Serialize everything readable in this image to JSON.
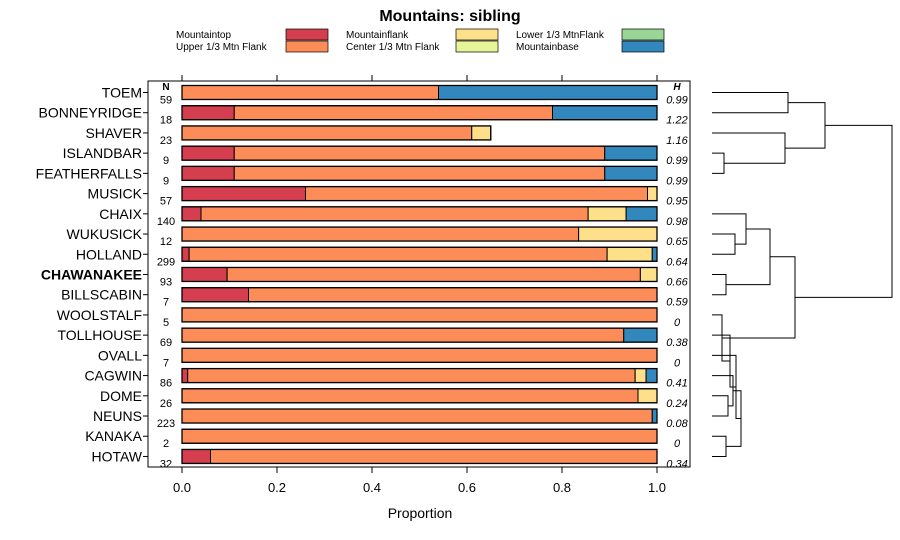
{
  "chart_data": {
    "type": "bar",
    "orientation": "horizontal",
    "stacked": true,
    "title": "Mountains: sibling",
    "xlabel": "Proportion",
    "xlim": [
      0,
      1
    ],
    "xticks": [
      "0.0",
      "0.2",
      "0.4",
      "0.6",
      "0.8",
      "1.0"
    ],
    "xtick_values": [
      0,
      0.2,
      0.4,
      0.6,
      0.8,
      1.0
    ],
    "n_header": "N",
    "h_header": "H",
    "bold_category": "CHAWANAKEE",
    "legend": [
      {
        "name": "Mountaintop",
        "color": "#d53e4f"
      },
      {
        "name": "Upper 1/3 Mtn Flank",
        "color": "#fc8d59"
      },
      {
        "name": "Mountainflank",
        "color": "#fee08b"
      },
      {
        "name": "Center 1/3 Mtn Flank",
        "color": "#e6f598"
      },
      {
        "name": "Lower 1/3 MtnFlank",
        "color": "#99d594"
      },
      {
        "name": "Mountainbase",
        "color": "#3288bd"
      }
    ],
    "categories": [
      "TOEM",
      "BONNEYRIDGE",
      "SHAVER",
      "ISLANDBAR",
      "FEATHERFALLS",
      "MUSICK",
      "CHAIX",
      "WUKUSICK",
      "HOLLAND",
      "CHAWANAKEE",
      "BILLSCABIN",
      "WOOLSTALF",
      "TOLLHOUSE",
      "OVALL",
      "CAGWIN",
      "DOME",
      "NEUNS",
      "KANAKA",
      "HOTAW"
    ],
    "n": [
      "59",
      "18",
      "23",
      "9",
      "9",
      "57",
      "140",
      "12",
      "299",
      "93",
      "7",
      "5",
      "69",
      "7",
      "86",
      "26",
      "223",
      "2",
      "32"
    ],
    "h": [
      "0.99",
      "1.22",
      "1.16",
      "0.99",
      "0.99",
      "0.95",
      "0.98",
      "0.65",
      "0.64",
      "0.66",
      "0.59",
      "0",
      "0.38",
      "0",
      "0.41",
      "0.24",
      "0.08",
      "0",
      "0.34"
    ],
    "series": [
      {
        "name": "Mountaintop",
        "color": "#d53e4f",
        "values": [
          0,
          0.11,
          0,
          0.11,
          0.11,
          0.26,
          0.04,
          0,
          0.015,
          0.095,
          0.14,
          0,
          0,
          0,
          0.012,
          0,
          0,
          0,
          0.06
        ]
      },
      {
        "name": "Upper 1/3 Mtn Flank",
        "color": "#fc8d59",
        "values": [
          0.54,
          0.67,
          0.61,
          0.78,
          0.78,
          0.72,
          0.815,
          0.835,
          0.88,
          0.87,
          0.86,
          1.0,
          0.93,
          1.0,
          0.942,
          0.96,
          0.99,
          1.0,
          0.94
        ]
      },
      {
        "name": "Mountainflank",
        "color": "#fee08b",
        "values": [
          0,
          0,
          0.04,
          0,
          0,
          0.02,
          0.08,
          0.165,
          0.095,
          0.035,
          0,
          0,
          0,
          0,
          0.023,
          0.04,
          0,
          0,
          0
        ]
      },
      {
        "name": "Center 1/3 Mtn Flank",
        "color": "#e6f598",
        "values": [
          0,
          0,
          0,
          0,
          0,
          0,
          0,
          0,
          0,
          0,
          0,
          0,
          0,
          0,
          0,
          0,
          0,
          0,
          0
        ]
      },
      {
        "name": "Lower 1/3 MtnFlank",
        "color": "#99d594",
        "values": [
          0,
          0,
          0,
          0,
          0,
          0,
          0,
          0,
          0,
          0,
          0,
          0,
          0,
          0,
          0,
          0,
          0,
          0,
          0
        ]
      },
      {
        "name": "Mountainbase",
        "color": "#3288bd",
        "values": [
          0.46,
          0.22,
          0,
          0.11,
          0.11,
          0,
          0.065,
          0,
          0.01,
          0,
          0,
          0,
          0.07,
          0,
          0.023,
          0,
          0.01,
          0,
          0
        ]
      }
    ],
    "dendrogram": "hierarchical clustering tree of the 19 sites (right margin)"
  }
}
